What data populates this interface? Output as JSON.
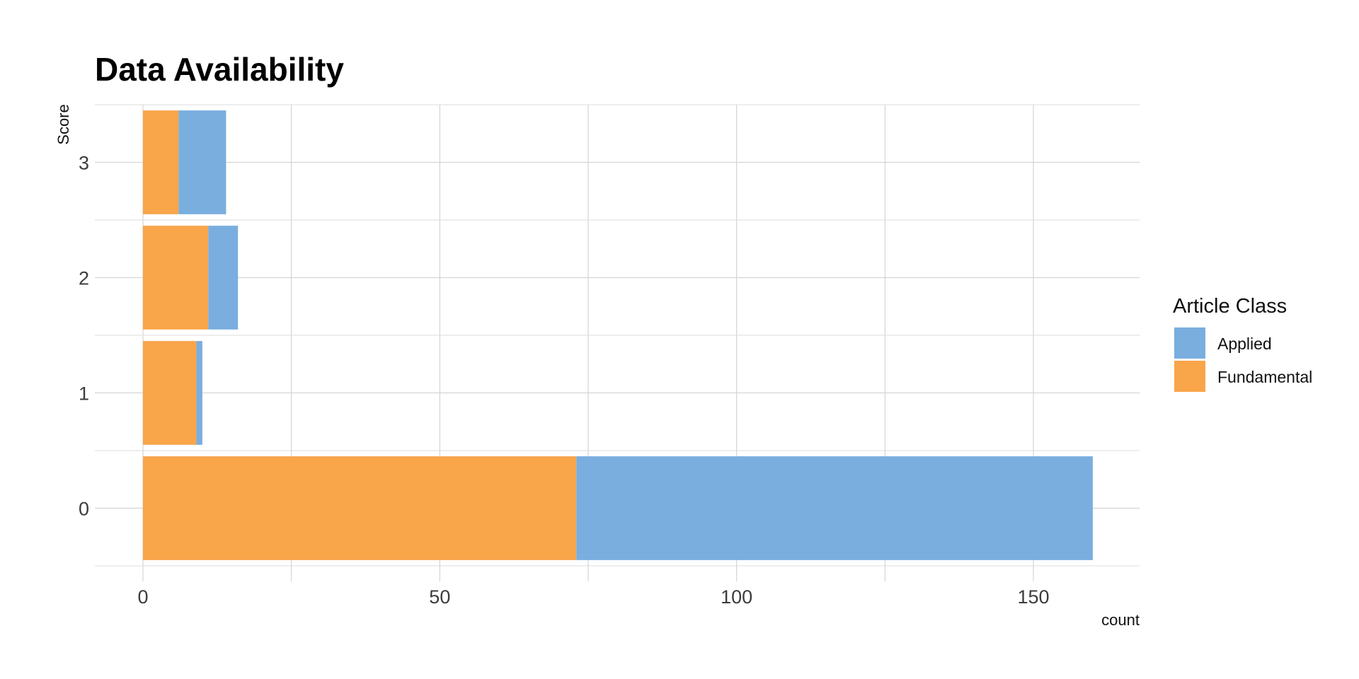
{
  "chart_data": {
    "type": "bar",
    "orientation": "horizontal",
    "stacked": true,
    "title": "Data Availability",
    "xlabel": "count",
    "ylabel": "Score",
    "categories": [
      "0",
      "1",
      "2",
      "3"
    ],
    "series": [
      {
        "name": "Fundamental",
        "color": "#f9a54a",
        "values": [
          73,
          9,
          11,
          6
        ]
      },
      {
        "name": "Applied",
        "color": "#79aedf",
        "values": [
          87,
          1,
          5,
          8
        ]
      }
    ],
    "xlim": [
      -8,
      168
    ],
    "x_ticks": [
      0,
      50,
      100,
      150
    ],
    "x_tick_labels": [
      "0",
      "50",
      "100",
      "150"
    ],
    "legend": {
      "title": "Article Class",
      "position": "right",
      "order": [
        "Applied",
        "Fundamental"
      ]
    },
    "grid": true
  }
}
